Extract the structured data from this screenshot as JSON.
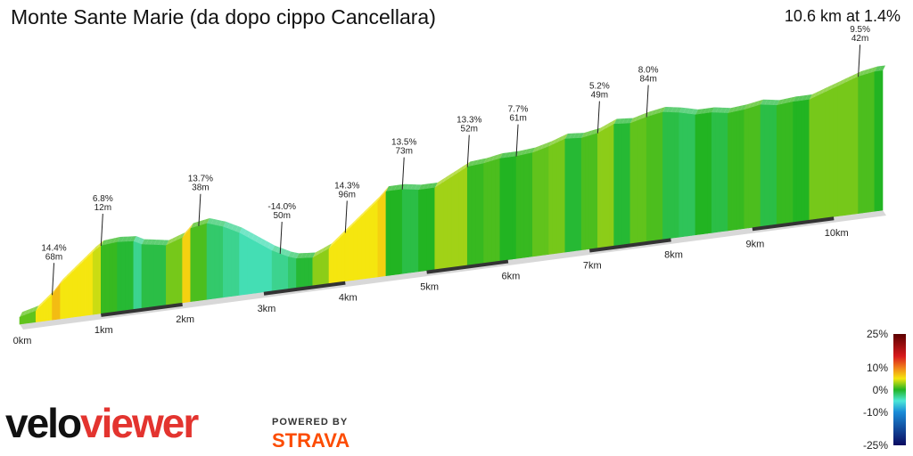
{
  "header": {
    "title": "Monte Sante Marie (da dopo cippo Cancellara)",
    "summary": "10.6 km at 1.4%"
  },
  "branding": {
    "logo_part1": "velo",
    "logo_part2": "viewer",
    "powered_by": "POWERED BY",
    "strava": "STRAVA"
  },
  "legend": {
    "ticks": [
      "25%",
      "10%",
      "0%",
      "-10%",
      "-25%"
    ],
    "values": [
      25,
      10,
      0,
      -10,
      -25
    ]
  },
  "chart_data": {
    "type": "area",
    "xlabel": "",
    "ylabel": "",
    "x_unit": "km",
    "x_ticks": [
      "0km",
      "1km",
      "2km",
      "3km",
      "4km",
      "5km",
      "6km",
      "7km",
      "8km",
      "9km",
      "10km"
    ],
    "total_distance_km": 10.6,
    "average_gradient_pct": 1.4,
    "profile": {
      "x_km": [
        0,
        0.2,
        0.4,
        0.5,
        0.7,
        0.9,
        1.0,
        1.2,
        1.4,
        1.5,
        1.6,
        1.8,
        2.0,
        2.1,
        2.3,
        2.5,
        2.7,
        2.9,
        3.1,
        3.3,
        3.4,
        3.6,
        3.8,
        4.0,
        4.2,
        4.4,
        4.5,
        4.7,
        4.9,
        5.1,
        5.3,
        5.5,
        5.7,
        5.9,
        6.1,
        6.3,
        6.5,
        6.7,
        6.9,
        7.1,
        7.3,
        7.5,
        7.7,
        7.9,
        8.1,
        8.3,
        8.5,
        8.7,
        8.9,
        9.1,
        9.3,
        9.5,
        9.7,
        9.9,
        10.1,
        10.3,
        10.5,
        10.6
      ],
      "elevation_m": [
        380,
        383,
        393,
        400,
        410,
        420,
        424,
        425,
        424,
        421,
        420,
        418,
        422,
        428,
        430,
        426,
        420,
        412,
        404,
        398,
        396,
        395,
        400,
        410,
        420,
        430,
        436,
        436,
        434,
        434,
        440,
        446,
        447,
        449,
        449,
        450,
        453,
        457,
        456,
        458,
        463,
        462,
        465,
        467,
        465,
        462,
        462,
        460,
        461,
        463,
        461,
        462,
        462,
        466,
        470,
        474,
        476,
        476
      ]
    },
    "annotations": [
      {
        "x_km": 0.4,
        "gradient": "14.4%",
        "length": "68m"
      },
      {
        "x_km": 1.0,
        "gradient": "6.8%",
        "length": "12m"
      },
      {
        "x_km": 2.2,
        "gradient": "13.7%",
        "length": "38m"
      },
      {
        "x_km": 3.2,
        "gradient": "-14.0%",
        "length": "50m"
      },
      {
        "x_km": 4.0,
        "gradient": "14.3%",
        "length": "96m"
      },
      {
        "x_km": 4.7,
        "gradient": "13.5%",
        "length": "73m"
      },
      {
        "x_km": 5.5,
        "gradient": "13.3%",
        "length": "52m"
      },
      {
        "x_km": 6.1,
        "gradient": "7.7%",
        "length": "61m"
      },
      {
        "x_km": 7.1,
        "gradient": "5.2%",
        "length": "49m"
      },
      {
        "x_km": 7.7,
        "gradient": "8.0%",
        "length": "84m"
      },
      {
        "x_km": 10.3,
        "gradient": "9.5%",
        "length": "42m"
      }
    ],
    "color_scale": {
      "stops": [
        {
          "pct": 25,
          "color": "#5a0000"
        },
        {
          "pct": 15,
          "color": "#d7191c"
        },
        {
          "pct": 10,
          "color": "#f07d1a"
        },
        {
          "pct": 5,
          "color": "#f5e60f"
        },
        {
          "pct": 0,
          "color": "#22b422"
        },
        {
          "pct": -5,
          "color": "#4de8d8"
        },
        {
          "pct": -10,
          "color": "#1a8cd8"
        },
        {
          "pct": -25,
          "color": "#0a0a60"
        }
      ]
    }
  }
}
